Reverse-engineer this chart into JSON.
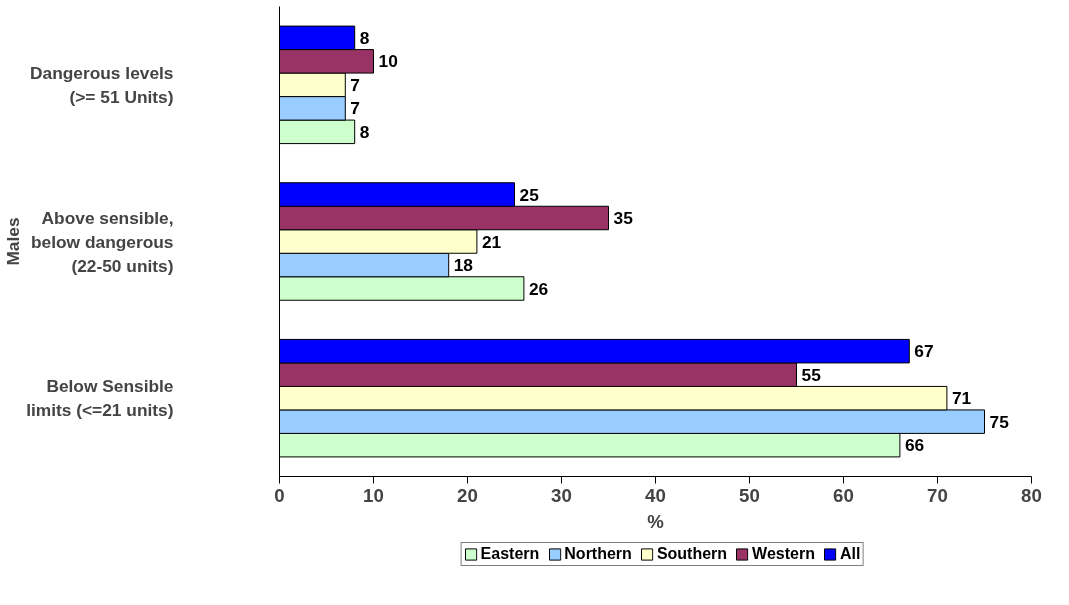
{
  "chart_data": {
    "type": "bar",
    "orientation": "horizontal",
    "xlabel": "%",
    "ylabel": "Males",
    "categories": [
      "Dangerous levels (>= 51 Units)",
      "Above sensible, below dangerous (22-50 units)",
      "Below Sensible limits (<=21 units)"
    ],
    "series": [
      {
        "name": "Eastern",
        "color": "#ccffcc",
        "values": [
          8,
          26,
          66
        ]
      },
      {
        "name": "Northern",
        "color": "#99ccff",
        "values": [
          7,
          18,
          75
        ]
      },
      {
        "name": "Southern",
        "color": "#ffffcc",
        "values": [
          7,
          21,
          71
        ]
      },
      {
        "name": "Western",
        "color": "#993366",
        "values": [
          10,
          35,
          55
        ]
      },
      {
        "name": "All",
        "color": "#0000ff",
        "values": [
          8,
          25,
          67
        ]
      }
    ],
    "xlim": [
      0,
      80
    ],
    "xticks": [
      0,
      10,
      20,
      30,
      40,
      50,
      60,
      70,
      80
    ],
    "data_labels": true,
    "grid": false,
    "legend": "bottom"
  }
}
